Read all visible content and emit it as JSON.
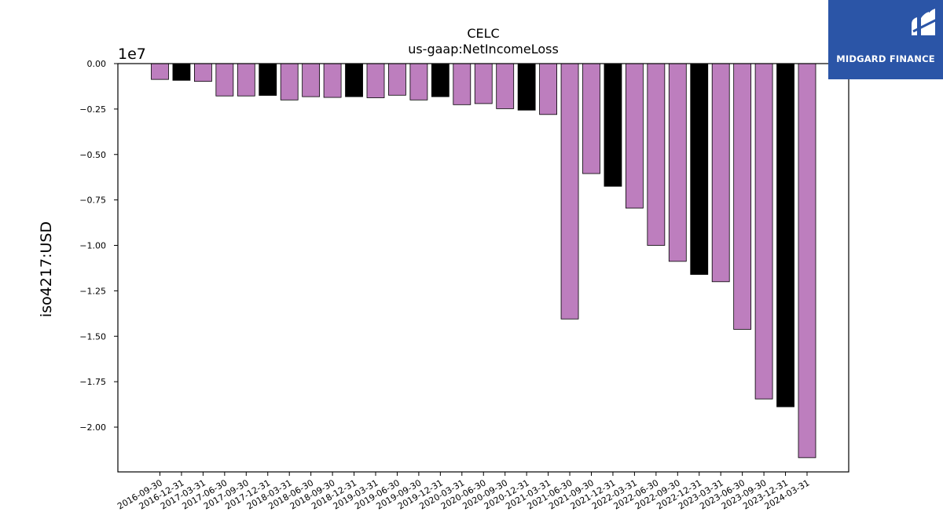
{
  "brand": {
    "name": "MIDGARD FINANCE",
    "logo_icon": "midgard-logo-icon",
    "background_color": "#2b55a7",
    "text_color": "#ffffff"
  },
  "colors": {
    "bar_purple": "#bd7ebe",
    "bar_black": "#000000",
    "edge": "#000000"
  },
  "chart_data": {
    "type": "bar",
    "title": "CELC",
    "subtitle": "us-gaap:NetIncomeLoss",
    "xlabel": "",
    "ylabel": "iso4217:USD",
    "offset_label": "1e7",
    "ylim": [
      -2.25,
      0.0
    ],
    "yticks": [
      0.0,
      -0.25,
      -0.5,
      -0.75,
      -1.0,
      -1.25,
      -1.5,
      -1.75,
      -2.0
    ],
    "ytick_labels": [
      "0.00",
      "−0.25",
      "−0.50",
      "−0.75",
      "−1.00",
      "−1.25",
      "−1.50",
      "−1.75",
      "−2.00"
    ],
    "grid": false,
    "categories": [
      "2016-09-30",
      "2016-12-31",
      "2017-03-31",
      "2017-06-30",
      "2017-09-30",
      "2017-12-31",
      "2018-03-31",
      "2018-06-30",
      "2018-09-30",
      "2018-12-31",
      "2019-03-31",
      "2019-06-30",
      "2019-09-30",
      "2019-12-31",
      "2020-03-31",
      "2020-06-30",
      "2020-09-30",
      "2020-12-31",
      "2021-03-31",
      "2021-06-30",
      "2021-09-30",
      "2021-12-31",
      "2022-03-31",
      "2022-06-30",
      "2022-09-30",
      "2022-12-31",
      "2023-03-31",
      "2023-06-30",
      "2023-09-30",
      "2023-12-31",
      "2024-03-31"
    ],
    "values": [
      -0.087,
      -0.092,
      -0.098,
      -0.178,
      -0.178,
      -0.175,
      -0.2,
      -0.182,
      -0.186,
      -0.182,
      -0.188,
      -0.174,
      -0.2,
      -0.182,
      -0.226,
      -0.22,
      -0.248,
      -0.256,
      -0.28,
      -1.405,
      -0.605,
      -0.675,
      -0.795,
      -1.0,
      -1.088,
      -1.16,
      -1.2,
      -1.462,
      -1.845,
      -1.888,
      -2.168
    ],
    "bar_colors": [
      "purple",
      "black",
      "purple",
      "purple",
      "purple",
      "black",
      "purple",
      "purple",
      "purple",
      "black",
      "purple",
      "purple",
      "purple",
      "black",
      "purple",
      "purple",
      "purple",
      "black",
      "purple",
      "purple",
      "purple",
      "black",
      "purple",
      "purple",
      "purple",
      "black",
      "purple",
      "purple",
      "purple",
      "black",
      "purple"
    ]
  }
}
